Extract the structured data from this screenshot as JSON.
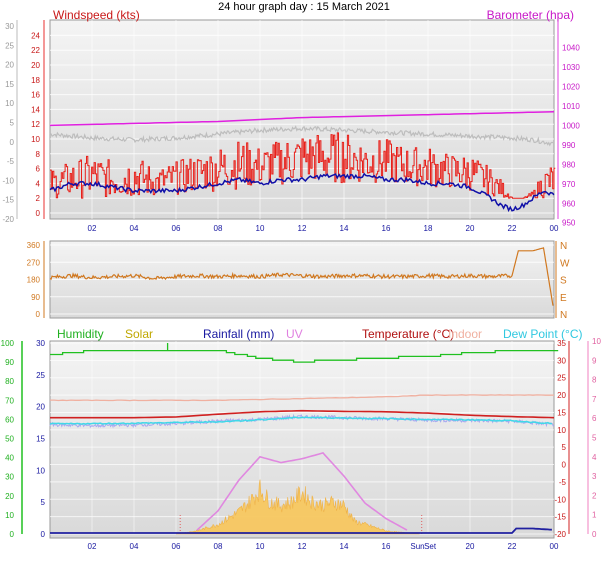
{
  "title": "24 hour graph day : 15 March 2021",
  "colors": {
    "wind": "#e8201a",
    "gust": "#1010a8",
    "baro": "#e020e0",
    "humidity": "#20c020",
    "solar": "#c8b000",
    "rain": "#2020a0",
    "uv": "#e088e0",
    "temp": "#d02020",
    "indoor": "#f0b0a0",
    "dew": "#40d8e8",
    "dir": "#d07820",
    "solarFill": "#f8c860",
    "grey": "#bdbdbd",
    "lavender": "#a8a8f0"
  },
  "chart_data": [
    {
      "type": "line",
      "name": "wind-barometer",
      "ylabel_left": "Windspeed (kts)",
      "ylabel_right": "Barometer (hpa)",
      "ylim_left": [
        0,
        25
      ],
      "ylim_right": [
        955,
        1050
      ],
      "ylim_far_left": [
        -20,
        30
      ],
      "ticks_left": [
        "24",
        "22",
        "20",
        "18",
        "16",
        "14",
        "12",
        "10",
        "8",
        "6",
        "4",
        "2",
        "0"
      ],
      "ticks_right": [
        "1040",
        "1030",
        "1020",
        "1010",
        "1000",
        "990",
        "980",
        "970",
        "960",
        "950"
      ],
      "ticks_far_left": [
        "30",
        "25",
        "20",
        "15",
        "10",
        "5",
        "0",
        "-5",
        "-10",
        "-15",
        "-20"
      ],
      "x_ticks": [
        "02",
        "04",
        "06",
        "08",
        "10",
        "12",
        "14",
        "16",
        "18",
        "20",
        "22",
        "00"
      ],
      "series": [
        {
          "key": "barometer",
          "axis": "right",
          "x": [
            0,
            4,
            8,
            12,
            16,
            20,
            24
          ],
          "values": [
            1000,
            1001,
            1002,
            1004,
            1005,
            1006,
            1007
          ]
        },
        {
          "key": "wind_avg",
          "axis": "left",
          "x": [
            0,
            1,
            2,
            3,
            4,
            5,
            6,
            7,
            8,
            9,
            10,
            11,
            12,
            13,
            14,
            15,
            16,
            17,
            18,
            19,
            20,
            21,
            21.5,
            22,
            22.5,
            23,
            23.5,
            24
          ],
          "values": [
            3,
            4,
            4,
            3.5,
            3,
            3,
            3,
            3.5,
            4,
            4.5,
            4,
            4.5,
            4.5,
            5,
            5,
            5,
            4.5,
            4.5,
            4,
            4,
            3.5,
            2,
            1,
            0.5,
            1,
            2,
            3,
            2.5
          ]
        },
        {
          "key": "wind_gust_hi",
          "axis": "left",
          "x": [
            0,
            1,
            2,
            3,
            4,
            5,
            6,
            7,
            8,
            9,
            10,
            11,
            12,
            13,
            14,
            15,
            16,
            17,
            18,
            19,
            20,
            21,
            21.6,
            22,
            22.5,
            23,
            23.5,
            24
          ],
          "values": [
            6,
            7,
            8,
            7,
            8,
            6,
            7,
            8,
            9,
            10,
            9,
            10,
            11,
            11,
            11,
            10,
            10,
            9,
            9,
            8,
            8,
            6,
            4,
            2,
            2,
            3,
            6,
            7
          ]
        },
        {
          "key": "wind_gust_lo",
          "axis": "left",
          "x": [
            0,
            4,
            8,
            12,
            16,
            20,
            21.6,
            24
          ],
          "values": [
            2,
            2,
            3,
            4,
            4,
            3,
            2,
            2
          ]
        },
        {
          "key": "far_left_grey",
          "axis": "far_left",
          "x": [
            0,
            2,
            4,
            6,
            8,
            10,
            12,
            14,
            16,
            18,
            20,
            22,
            23,
            24
          ],
          "values": [
            2,
            1,
            0.5,
            1,
            2,
            3,
            3.5,
            3,
            2.5,
            2,
            1.5,
            1,
            0.5,
            -0.5
          ]
        }
      ]
    },
    {
      "type": "line",
      "name": "wind-direction",
      "ticks_left": [
        "360",
        "270",
        "180",
        "90",
        "0"
      ],
      "ticks_right": [
        "N",
        "W",
        "S",
        "E",
        "N"
      ],
      "ylim": [
        0,
        360
      ],
      "x": [
        0,
        1,
        2,
        3,
        4,
        5,
        6,
        7,
        8,
        9,
        10,
        11,
        12,
        13,
        14,
        15,
        16,
        17,
        18,
        19,
        20,
        21,
        22,
        22.3,
        23,
        23.5,
        24
      ],
      "values": [
        190,
        200,
        190,
        195,
        200,
        185,
        195,
        200,
        195,
        200,
        195,
        205,
        200,
        195,
        200,
        200,
        195,
        195,
        200,
        195,
        200,
        195,
        200,
        330,
        330,
        345,
        10
      ]
    },
    {
      "type": "line",
      "name": "temp-humidity-solar",
      "legend": [
        "Humidity",
        "Solar",
        "Rainfall (mm)",
        "UV",
        "Temperature (°C)",
        "Indoor",
        "Dew Point (°C)"
      ],
      "ticks_hum": [
        "100",
        "90",
        "80",
        "70",
        "60",
        "50",
        "40",
        "30",
        "20",
        "10",
        "0"
      ],
      "ticks_rain": [
        "30",
        "25",
        "20",
        "15",
        "10",
        "5",
        "0"
      ],
      "ticks_temp": [
        "35",
        "30",
        "25",
        "20",
        "15",
        "10",
        "5",
        "0",
        "-5",
        "-10",
        "-15",
        "-20"
      ],
      "ticks_uv": [
        "10",
        "9",
        "8",
        "7",
        "6",
        "5",
        "4",
        "3",
        "2",
        "1",
        "0"
      ],
      "x_ticks": [
        "02",
        "04",
        "06",
        "08",
        "10",
        "12",
        "14",
        "16",
        "Sun",
        "Set",
        "20",
        "22",
        "00"
      ],
      "sun_markers": [
        6.2,
        17.7
      ],
      "ylim_temp": [
        -20,
        35
      ],
      "ylim_rain": [
        0,
        30
      ],
      "series": [
        {
          "key": "humidity",
          "x": [
            0,
            2,
            4,
            6,
            8,
            9,
            10,
            11,
            12,
            13,
            14,
            15,
            16,
            17,
            18,
            20,
            22,
            24
          ],
          "values": [
            94,
            96,
            96,
            96,
            96,
            94,
            92,
            91,
            90,
            91,
            91,
            92,
            92,
            93,
            93,
            95,
            96,
            96
          ]
        },
        {
          "key": "indoor",
          "x": [
            0,
            4,
            8,
            12,
            16,
            18,
            20,
            24
          ],
          "values": [
            18.5,
            18.5,
            18.5,
            19,
            19.5,
            20,
            20,
            20
          ]
        },
        {
          "key": "temperature",
          "x": [
            0,
            2,
            4,
            6,
            8,
            10,
            12,
            14,
            16,
            18,
            20,
            22,
            24
          ],
          "values": [
            13.5,
            13.5,
            13.5,
            13.7,
            14.5,
            15.2,
            15.5,
            15.3,
            15.2,
            14.8,
            14.2,
            13.8,
            13.5
          ]
        },
        {
          "key": "dewpoint",
          "x": [
            0,
            4,
            8,
            10,
            12,
            14,
            16,
            18,
            20,
            22,
            24
          ],
          "values": [
            11.7,
            11.9,
            12.3,
            12.9,
            13.6,
            13.4,
            13.2,
            13.0,
            12.9,
            12.6,
            11.8
          ]
        },
        {
          "key": "dew_noisy",
          "x": [
            0,
            2,
            4,
            6,
            8,
            10,
            12,
            14,
            16,
            18,
            20,
            22,
            24
          ],
          "values": [
            11.5,
            11.2,
            11.4,
            11.8,
            12.5,
            13.0,
            13.8,
            13.5,
            13.2,
            12.8,
            12.7,
            12.5,
            11.5
          ]
        },
        {
          "key": "solar",
          "x": [
            6,
            7,
            8,
            9,
            9.5,
            10,
            10.5,
            11,
            11.5,
            12,
            12.5,
            13,
            13.5,
            14,
            14.5,
            15,
            15.5,
            16,
            16.5,
            17,
            17.6
          ],
          "values": [
            0,
            0.5,
            1.5,
            3.5,
            5,
            7,
            5,
            4.5,
            5,
            6.5,
            5,
            4.5,
            5,
            4.5,
            2,
            1.5,
            1,
            0.5,
            0.3,
            0.2,
            0
          ]
        },
        {
          "key": "uv",
          "x": [
            7,
            8,
            9,
            10,
            11,
            12,
            13,
            14,
            15,
            16,
            17
          ],
          "values": [
            0.2,
            1.2,
            2.8,
            4.0,
            3.7,
            3.9,
            4.2,
            3.0,
            1.6,
            0.8,
            0.2
          ]
        },
        {
          "key": "rainfall",
          "x": [
            0,
            22,
            22.2,
            23,
            24
          ],
          "values": [
            0,
            0,
            0.7,
            0.7,
            0.5
          ]
        }
      ]
    }
  ]
}
